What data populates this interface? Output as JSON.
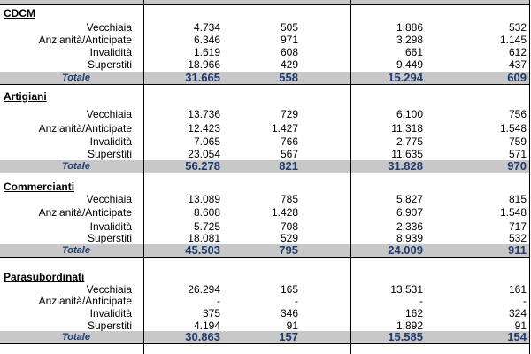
{
  "sections": [
    {
      "title": "CDCM",
      "rows": [
        {
          "label": "Vecchiaia",
          "values": [
            "4.734",
            "505",
            "1.886",
            "532"
          ]
        },
        {
          "label": "Anzianità/Anticipate",
          "values": [
            "6.346",
            "971",
            "3.298",
            "1.145"
          ]
        },
        {
          "label": "Invalidità",
          "values": [
            "1.619",
            "608",
            "661",
            "612"
          ]
        },
        {
          "label": "Superstiti",
          "values": [
            "18.966",
            "429",
            "9.449",
            "437"
          ]
        }
      ],
      "total": {
        "label": "Totale",
        "values": [
          "31.665",
          "558",
          "15.294",
          "609"
        ]
      }
    },
    {
      "title": "Artigiani",
      "rows": [
        {
          "label": "Vecchiaia",
          "values": [
            "13.736",
            "729",
            "6.100",
            "756"
          ]
        },
        {
          "label": "Anzianità/Anticipate",
          "values": [
            "12.423",
            "1.427",
            "11.318",
            "1.548"
          ]
        },
        {
          "label": "Invalidità",
          "values": [
            "7.065",
            "766",
            "2.775",
            "759"
          ]
        },
        {
          "label": "Superstiti",
          "values": [
            "23.054",
            "567",
            "11.635",
            "571"
          ]
        }
      ],
      "total": {
        "label": "Totale",
        "values": [
          "56.278",
          "821",
          "31.828",
          "970"
        ]
      }
    },
    {
      "title": "Commercianti",
      "rows": [
        {
          "label": "Vecchiaia",
          "values": [
            "13.089",
            "785",
            "5.827",
            "815"
          ]
        },
        {
          "label": "Anzianità/Anticipate",
          "values": [
            "8.608",
            "1.428",
            "6.907",
            "1.548"
          ]
        },
        {
          "label": "Invalidità",
          "values": [
            "5.725",
            "708",
            "2.336",
            "717"
          ]
        },
        {
          "label": "Superstiti",
          "values": [
            "18.081",
            "529",
            "8.939",
            "532"
          ]
        }
      ],
      "total": {
        "label": "Totale",
        "values": [
          "45.503",
          "795",
          "24.009",
          "911"
        ]
      }
    },
    {
      "title": "Parasubordinati",
      "rows": [
        {
          "label": "Vecchiaia",
          "values": [
            "26.294",
            "165",
            "13.531",
            "161"
          ]
        },
        {
          "label": "Anzianità/Anticipate",
          "values": [
            "-",
            "-",
            "-",
            "-"
          ]
        },
        {
          "label": "Invalidità",
          "values": [
            "375",
            "346",
            "162",
            "324"
          ]
        },
        {
          "label": "Superstiti",
          "values": [
            "4.194",
            "91",
            "1.892",
            "91"
          ]
        }
      ],
      "total": {
        "label": "Totale",
        "values": [
          "30.863",
          "157",
          "15.585",
          "154"
        ]
      }
    }
  ]
}
